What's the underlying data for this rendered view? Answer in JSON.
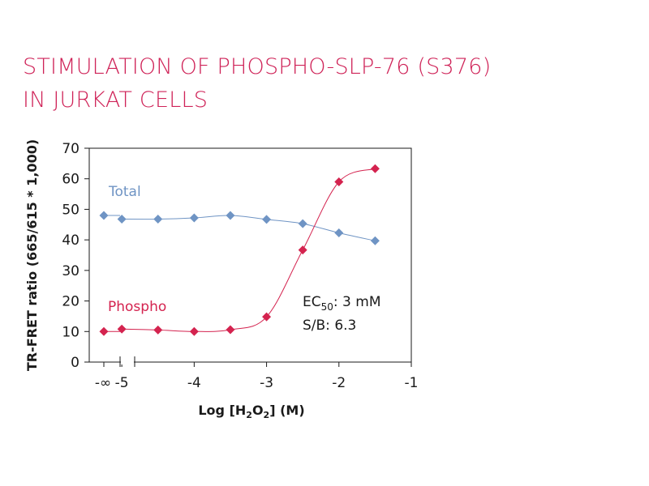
{
  "title": {
    "line1": "STIMULATION OF PHOSPHO-SLP-76 (S376)",
    "line2": "IN JURKAT CELLS"
  },
  "colors": {
    "title": "#cf2358",
    "phospho": "#d4234f",
    "total": "#6f94c4",
    "axis": "#1a1a1a"
  },
  "chart_data": {
    "type": "scatter",
    "ylabel": "TR-FRET ratio (665/615 * 1,000)",
    "xlabel_parts": {
      "pre": "Log [H",
      "sub1": "2",
      "mid": "O",
      "sub2": "2",
      "post": "] (M)"
    },
    "ylim": [
      0,
      70
    ],
    "yticks": [
      0,
      10,
      20,
      30,
      40,
      50,
      60,
      70
    ],
    "xlim": [
      -5.45,
      -1
    ],
    "xticks": [
      {
        "value": -5,
        "label": "-5"
      },
      {
        "value": -4,
        "label": "-4"
      },
      {
        "value": -3,
        "label": "-3"
      },
      {
        "value": -2,
        "label": "-2"
      },
      {
        "value": -1,
        "label": "-1"
      }
    ],
    "x_break_label": "-∞",
    "grid": false,
    "series": [
      {
        "name": "Total",
        "color": "#6f94c4",
        "zero_point": 48,
        "x": [
          -5,
          -4.5,
          -4,
          -3.5,
          -3,
          -2.5,
          -2,
          -1.5
        ],
        "y": [
          46.8,
          46.8,
          47.2,
          48.0,
          46.7,
          45.3,
          42.3,
          39.7
        ]
      },
      {
        "name": "Phospho",
        "color": "#d4234f",
        "zero_point": 10,
        "x": [
          -5,
          -4.5,
          -4,
          -3.5,
          -3,
          -2.5,
          -2,
          -1.5
        ],
        "y": [
          10.8,
          10.5,
          10.0,
          10.6,
          14.8,
          36.7,
          59.0,
          63.3
        ]
      }
    ],
    "annotation": {
      "ec50_prefix": "EC",
      "ec50_sub": "50",
      "ec50_value": ": 3 mM",
      "sb": "S/B: 6.3"
    }
  }
}
